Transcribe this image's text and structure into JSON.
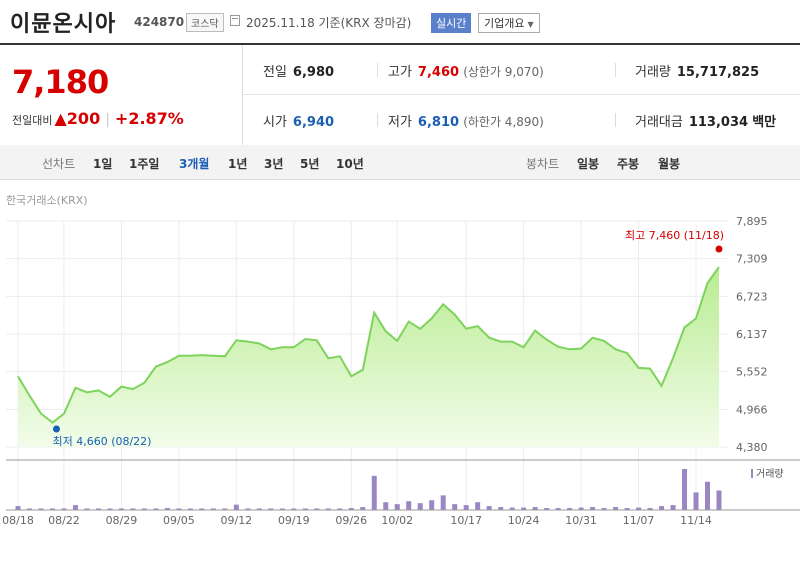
{
  "header": {
    "name": "이뮨온시아",
    "code": "424870",
    "market": "코스닥",
    "asof": "2025.11.18 기준(KRX 장마감)",
    "live": "실시간",
    "corp_button": "기업개요"
  },
  "quote": {
    "price": "7,180",
    "change_label": "전일대비",
    "change_amount": "200",
    "change_percent": "+2.87%",
    "prev_label": "전일",
    "prev": "6,980",
    "high_label": "고가",
    "high": "7,460",
    "upper_limit": "(상한가 9,070)",
    "volume_label": "거래량",
    "volume": "15,717,825",
    "open_label": "시가",
    "open": "6,940",
    "low_label": "저가",
    "low": "6,810",
    "lower_limit": "(하한가 4,890)",
    "amount_label": "거래대금",
    "amount": "113,034",
    "amount_unit": "백만"
  },
  "toolbar": {
    "line_label": "선차트",
    "periods": [
      "1일",
      "1주일",
      "3개월",
      "1년",
      "3년",
      "5년",
      "10년"
    ],
    "selected_period": "3개월",
    "candle_label": "봉차트",
    "candles": [
      "일봉",
      "주봉",
      "월봉"
    ]
  },
  "source": "한국거래소(KRX)",
  "colors": {
    "up": "#d60000",
    "down": "#1a5fb4",
    "line": "#7ed35c",
    "area": "#c8f0a8",
    "volume": "#9b86c4"
  },
  "chart_data": {
    "type": "area",
    "y_ticks": [
      "7,895",
      "7,309",
      "6,723",
      "6,137",
      "5,552",
      "4,966",
      "4,380"
    ],
    "ylim": [
      4380,
      7895
    ],
    "x_ticks": [
      "08/18",
      "08/22",
      "08/29",
      "09/05",
      "09/12",
      "09/19",
      "09/26",
      "10/02",
      "10/17",
      "10/24",
      "10/31",
      "11/07",
      "11/14"
    ],
    "max_annotation": "최고 7,460 (11/18)",
    "min_annotation": "최저 4,660 (08/22)",
    "volume_legend": "거래량",
    "x": [
      "08/18",
      "08/19",
      "08/20",
      "08/21",
      "08/22",
      "08/25",
      "08/26",
      "08/27",
      "08/28",
      "08/29",
      "09/01",
      "09/02",
      "09/03",
      "09/04",
      "09/05",
      "09/08",
      "09/09",
      "09/10",
      "09/11",
      "09/12",
      "09/15",
      "09/16",
      "09/17",
      "09/18",
      "09/19",
      "09/22",
      "09/23",
      "09/24",
      "09/25",
      "09/26",
      "09/29",
      "09/30",
      "10/01",
      "10/02",
      "10/10",
      "10/13",
      "10/14",
      "10/15",
      "10/16",
      "10/17",
      "10/20",
      "10/21",
      "10/22",
      "10/23",
      "10/24",
      "10/27",
      "10/28",
      "10/29",
      "10/30",
      "10/31",
      "11/03",
      "11/04",
      "11/05",
      "11/06",
      "11/07",
      "11/10",
      "11/11",
      "11/12",
      "11/13",
      "11/14",
      "11/17",
      "11/18"
    ],
    "close": [
      5480,
      5180,
      4900,
      4760,
      4900,
      5300,
      5230,
      5260,
      5160,
      5320,
      5280,
      5380,
      5630,
      5700,
      5800,
      5800,
      5810,
      5800,
      5790,
      6040,
      6020,
      5990,
      5900,
      5930,
      5930,
      6060,
      6040,
      5760,
      5790,
      5480,
      5580,
      6470,
      6180,
      6030,
      6330,
      6220,
      6380,
      6600,
      6440,
      6220,
      6260,
      6080,
      6020,
      6020,
      5930,
      6190,
      6050,
      5940,
      5900,
      5910,
      6080,
      6030,
      5900,
      5840,
      5610,
      5600,
      5330,
      5760,
      6240,
      6380,
      6930,
      7180
    ],
    "volume": [
      0.4,
      0.15,
      0.15,
      0.1,
      0.1,
      0.5,
      0.15,
      0.1,
      0.1,
      0.15,
      0.1,
      0.1,
      0.15,
      0.2,
      0.15,
      0.1,
      0.1,
      0.15,
      0.1,
      0.55,
      0.1,
      0.1,
      0.15,
      0.1,
      0.1,
      0.1,
      0.1,
      0.15,
      0.1,
      0.2,
      0.3,
      3.5,
      0.8,
      0.6,
      0.9,
      0.7,
      1.0,
      1.5,
      0.6,
      0.5,
      0.8,
      0.4,
      0.3,
      0.25,
      0.25,
      0.3,
      0.2,
      0.2,
      0.2,
      0.25,
      0.3,
      0.2,
      0.3,
      0.2,
      0.25,
      0.2,
      0.4,
      0.5,
      4.2,
      1.8,
      2.9,
      2.0
    ]
  }
}
